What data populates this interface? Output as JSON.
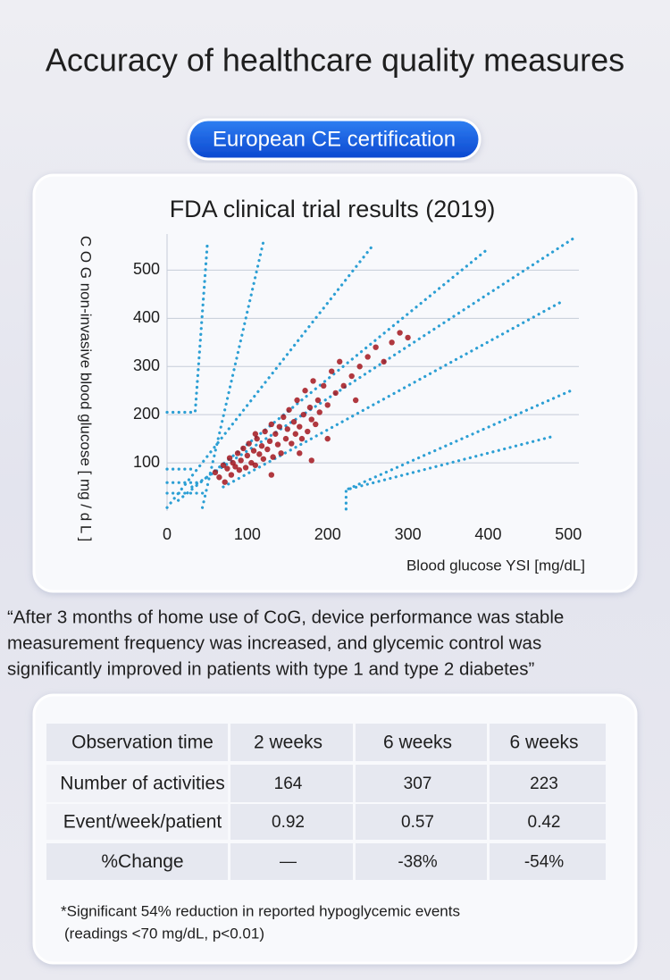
{
  "header": {
    "title": "Accuracy of healthcare quality measures",
    "badge": "European CE certification"
  },
  "chart_data": {
    "type": "scatter",
    "title": "FDA clinical trial results (2019)",
    "x_label": "Blood glucose YSI [mg/dL]",
    "y_label": "C O G non-invasive blood glucose [ mg / d L ]",
    "color": "#a3161d",
    "x": [
      60,
      65,
      70,
      72,
      75,
      78,
      80,
      82,
      85,
      88,
      90,
      92,
      95,
      98,
      100,
      102,
      105,
      108,
      110,
      112,
      115,
      118,
      120,
      122,
      125,
      128,
      130,
      132,
      135,
      138,
      140,
      142,
      145,
      148,
      150,
      152,
      155,
      158,
      160,
      162,
      165,
      168,
      170,
      172,
      175,
      178,
      180,
      182,
      185,
      188,
      190,
      195,
      200,
      205,
      210,
      215,
      220,
      230,
      240,
      250,
      260,
      270,
      280,
      290,
      300,
      165,
      200,
      130,
      235,
      110,
      180
    ],
    "values": [
      80,
      70,
      95,
      60,
      88,
      110,
      75,
      100,
      92,
      120,
      85,
      105,
      130,
      90,
      115,
      140,
      100,
      125,
      95,
      150,
      118,
      135,
      108,
      165,
      128,
      145,
      180,
      112,
      160,
      138,
      175,
      120,
      195,
      150,
      170,
      210,
      140,
      185,
      160,
      230,
      175,
      150,
      200,
      250,
      165,
      215,
      190,
      270,
      180,
      230,
      205,
      260,
      220,
      290,
      245,
      310,
      260,
      280,
      300,
      320,
      340,
      310,
      350,
      370,
      360,
      120,
      150,
      75,
      230,
      160,
      105
    ],
    "zone_color": "#2c9fd4",
    "zone_lines": [
      {
        "x": [
          0,
          258
        ],
        "y": [
          7,
          555
        ]
      },
      {
        "x": [
          44,
          120
        ],
        "y": [
          7,
          559
        ]
      },
      {
        "x": [
          0,
          35,
          50
        ],
        "y": [
          205,
          205,
          550
        ]
      },
      {
        "x": [
          0,
          30
        ],
        "y": [
          87,
          87
        ]
      },
      {
        "x": [
          0,
          40
        ],
        "y": [
          59,
          59
        ]
      },
      {
        "x": [
          0,
          45
        ],
        "y": [
          37,
          37
        ]
      },
      {
        "x": [
          14,
          401
        ],
        "y": [
          22,
          546
        ]
      },
      {
        "x": [
          31,
          509
        ],
        "y": [
          50,
          569
        ]
      },
      {
        "x": [
          70,
          492
        ],
        "y": [
          50,
          435
        ]
      },
      {
        "x": [
          226,
          506
        ],
        "y": [
          46,
          252
        ]
      },
      {
        "x": [
          223,
          223,
          481
        ],
        "y": [
          4,
          44,
          155
        ]
      }
    ],
    "xlim": [
      0,
      513
    ],
    "ylim": [
      0,
      575
    ],
    "xticks": [
      0,
      100,
      200,
      300,
      400,
      500
    ],
    "yticks": [
      100,
      200,
      300,
      400,
      500
    ],
    "grid": true
  },
  "quote": {
    "lines": [
      "“After 3 months of home use of CoG, device performance was stable",
      "measurement frequency was increased, and glycemic control was",
      "significantly improved in patients with type 1 and type 2 diabetes”"
    ]
  },
  "table": {
    "rows": [
      [
        "Observation time",
        "2 weeks",
        "6 weeks",
        "6 weeks"
      ],
      [
        "Number of activities",
        "164",
        "307",
        "223"
      ],
      [
        "Event/week/patient",
        "0.92",
        "0.57",
        "0.42"
      ],
      [
        "%Change",
        "—",
        "-38%",
        "-54%"
      ]
    ]
  },
  "footnote": {
    "lines": [
      "*Significant 54% reduction in reported hypoglycemic events",
      "(readings <70 mg/dL, p<0.01)"
    ]
  }
}
